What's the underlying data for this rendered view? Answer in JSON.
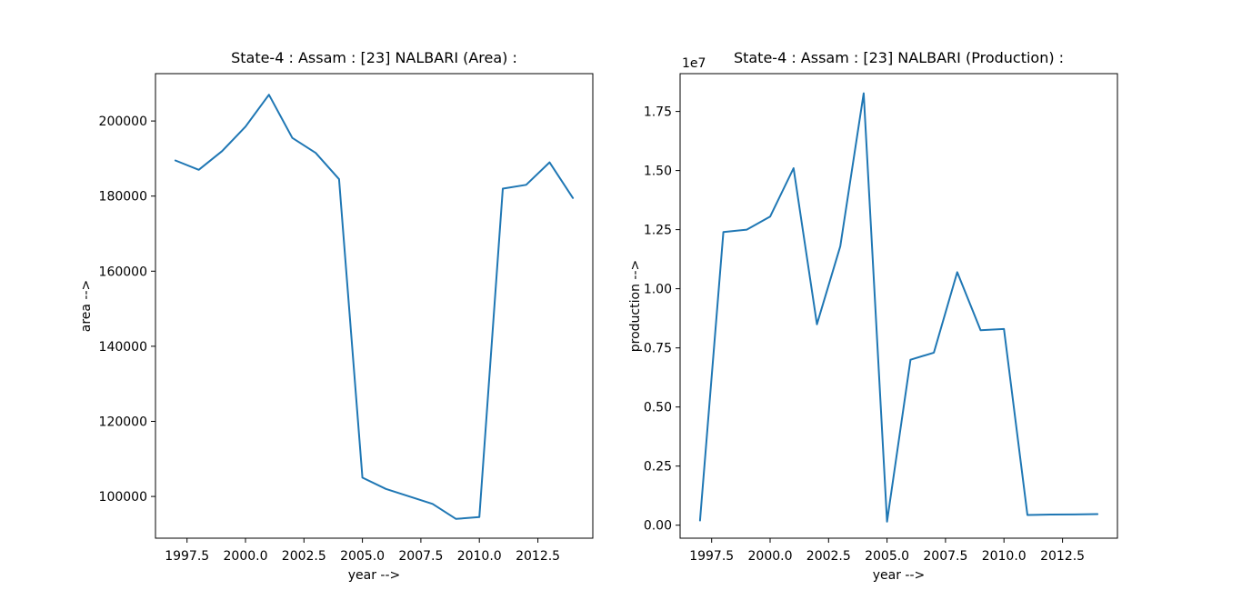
{
  "figure": {
    "background": "#ffffff",
    "line_color": "#1f77b4",
    "axis_color": "#000000",
    "text_color": "#000000"
  },
  "chart_data": [
    {
      "type": "line",
      "title": "State-4 : Assam : [23] NALBARI (Area) :",
      "xlabel": "year -->",
      "ylabel": "area -->",
      "offset_text": "",
      "legend": null,
      "grid": false,
      "x": [
        1997,
        1998,
        1999,
        2000,
        2001,
        2002,
        2003,
        2004,
        2005,
        2006,
        2007,
        2008,
        2009,
        2010,
        2011,
        2012,
        2013,
        2014
      ],
      "y": [
        189500,
        187000,
        192000,
        198500,
        207000,
        195500,
        191500,
        184500,
        105000,
        102000,
        100000,
        98000,
        94000,
        94500,
        182000,
        183000,
        189000,
        179500
      ],
      "xlim": [
        1996.15,
        2014.85
      ],
      "ylim": [
        88875,
        212625
      ],
      "xticks": [
        1997.5,
        2000.0,
        2002.5,
        2005.0,
        2007.5,
        2010.0,
        2012.5
      ],
      "xtick_labels": [
        "1997.5",
        "2000.0",
        "2002.5",
        "2005.0",
        "2007.5",
        "2010.0",
        "2012.5"
      ],
      "yticks": [
        100000,
        120000,
        140000,
        160000,
        180000,
        200000
      ],
      "ytick_labels": [
        "100000",
        "120000",
        "140000",
        "160000",
        "180000",
        "200000"
      ]
    },
    {
      "type": "line",
      "title": "State-4 : Assam : [23] NALBARI (Production) :",
      "xlabel": "year -->",
      "ylabel": "production -->",
      "offset_text": "1e7",
      "legend": null,
      "grid": false,
      "x": [
        1997,
        1998,
        1999,
        2000,
        2001,
        2002,
        2003,
        2004,
        2005,
        2006,
        2007,
        2008,
        2009,
        2010,
        2011,
        2012,
        2013,
        2014
      ],
      "y": [
        200000,
        12400000,
        12500000,
        13050000,
        15100000,
        8500000,
        11800000,
        18270000,
        150000,
        7000000,
        7300000,
        10700000,
        8250000,
        8300000,
        430000,
        450000,
        455000,
        470000
      ],
      "xlim": [
        1996.15,
        2014.85
      ],
      "ylim": [
        -550000,
        19100000
      ],
      "xticks": [
        1997.5,
        2000.0,
        2002.5,
        2005.0,
        2007.5,
        2010.0,
        2012.5
      ],
      "xtick_labels": [
        "1997.5",
        "2000.0",
        "2002.5",
        "2005.0",
        "2007.5",
        "2010.0",
        "2012.5"
      ],
      "yticks": [
        0,
        2500000,
        5000000,
        7500000,
        10000000,
        12500000,
        15000000,
        17500000
      ],
      "ytick_labels": [
        "0.00",
        "0.25",
        "0.50",
        "0.75",
        "1.00",
        "1.25",
        "1.50",
        "1.75"
      ]
    }
  ]
}
